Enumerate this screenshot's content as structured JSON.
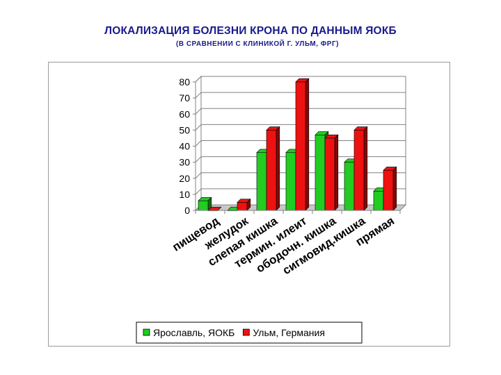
{
  "title": "ЛОКАЛИЗАЦИЯ БОЛЕЗНИ КРОНА ПО ДАННЫМ ЯОКБ",
  "subtitle": "(В СРАВНЕНИИ С КЛИНИКОЙ Г. УЛЬМ, ФРГ)",
  "chart_data": {
    "type": "bar",
    "title": "ЛОКАЛИЗАЦИЯ БОЛЕЗНИ КРОНА ПО ДАННЫМ ЯОКБ",
    "subtitle": "(В СРАВНЕНИИ С КЛИНИКОЙ Г. УЛЬМ, ФРГ)",
    "categories": [
      "пищевод",
      "желудок",
      "слепая кишка",
      "термин. илеит",
      "ободочн. кишка",
      "сигмовид.кишка",
      "прямая"
    ],
    "series": [
      {
        "name": "Ярославль, ЯОКБ",
        "values": [
          6,
          0,
          36,
          36,
          47,
          30,
          12
        ],
        "color": "#22cc22"
      },
      {
        "name": "Ульм, Германия",
        "values": [
          0,
          5,
          50,
          80,
          45,
          50,
          25
        ],
        "color": "#ee1111"
      }
    ],
    "yticks": [
      "0",
      "10",
      "20",
      "30",
      "40",
      "50",
      "60",
      "70",
      "80"
    ],
    "ylim": [
      0,
      80
    ],
    "grid": true,
    "legend": "bottom"
  }
}
